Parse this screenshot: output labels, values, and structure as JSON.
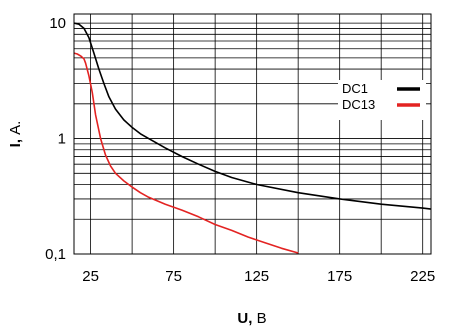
{
  "chart_data": {
    "type": "line",
    "title": "",
    "xlabel": {
      "bold": "U,",
      "rest": " В"
    },
    "ylabel": {
      "bold": "I,",
      "rest": " А."
    },
    "xscale": "linear",
    "yscale": "log",
    "xlim": [
      15,
      230
    ],
    "ylim": [
      0.1,
      12
    ],
    "x_ticks": [
      {
        "value": 25,
        "label": "25"
      },
      {
        "value": 75,
        "label": "75"
      },
      {
        "value": 125,
        "label": "125"
      },
      {
        "value": 175,
        "label": "175"
      },
      {
        "value": 225,
        "label": "225"
      }
    ],
    "y_ticks": [
      {
        "value": 0.1,
        "label": "0,1"
      },
      {
        "value": 1,
        "label": "1"
      },
      {
        "value": 10,
        "label": "10"
      }
    ],
    "grid": true,
    "legend_position": "top-right",
    "series": [
      {
        "name": "DC1",
        "color": "#000000",
        "points": [
          [
            15,
            10
          ],
          [
            18,
            9.8
          ],
          [
            21,
            9.0
          ],
          [
            24,
            7.5
          ],
          [
            27,
            5.5
          ],
          [
            30,
            4.0
          ],
          [
            33,
            3.0
          ],
          [
            36,
            2.3
          ],
          [
            40,
            1.8
          ],
          [
            45,
            1.45
          ],
          [
            50,
            1.25
          ],
          [
            55,
            1.1
          ],
          [
            60,
            1.0
          ],
          [
            70,
            0.83
          ],
          [
            80,
            0.7
          ],
          [
            90,
            0.6
          ],
          [
            100,
            0.52
          ],
          [
            110,
            0.46
          ],
          [
            125,
            0.4
          ],
          [
            150,
            0.34
          ],
          [
            175,
            0.3
          ],
          [
            200,
            0.27
          ],
          [
            225,
            0.25
          ],
          [
            230,
            0.245
          ]
        ]
      },
      {
        "name": "DC13",
        "color": "#e32322",
        "points": [
          [
            15,
            5.5
          ],
          [
            17,
            5.4
          ],
          [
            19,
            5.2
          ],
          [
            21,
            4.9
          ],
          [
            22,
            4.5
          ],
          [
            24,
            3.5
          ],
          [
            26,
            2.5
          ],
          [
            28,
            1.6
          ],
          [
            31,
            1.0
          ],
          [
            34,
            0.72
          ],
          [
            37,
            0.58
          ],
          [
            40,
            0.5
          ],
          [
            45,
            0.43
          ],
          [
            50,
            0.38
          ],
          [
            55,
            0.34
          ],
          [
            60,
            0.31
          ],
          [
            70,
            0.27
          ],
          [
            80,
            0.24
          ],
          [
            90,
            0.21
          ],
          [
            100,
            0.18
          ],
          [
            110,
            0.16
          ],
          [
            120,
            0.14
          ],
          [
            130,
            0.125
          ],
          [
            140,
            0.112
          ],
          [
            150,
            0.102
          ]
        ]
      }
    ]
  }
}
